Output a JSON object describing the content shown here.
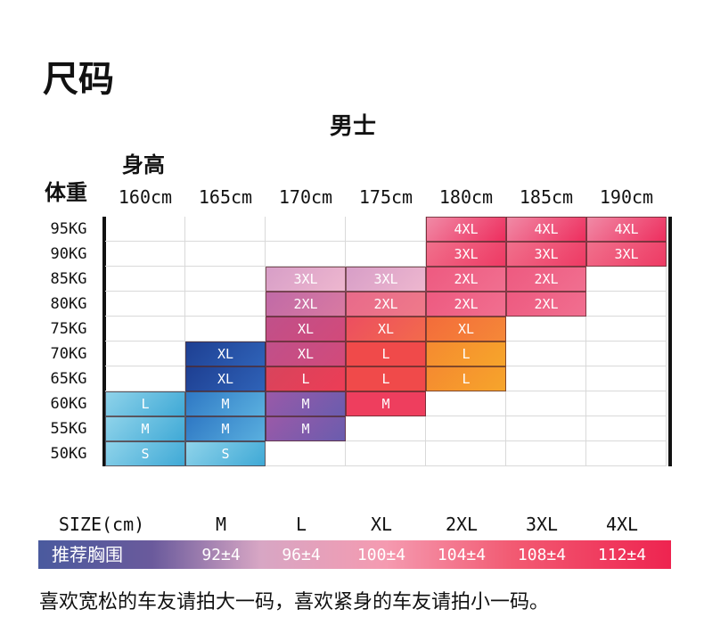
{
  "title": "尺码",
  "subtitle": "男士",
  "height_axis_label": "身高",
  "weight_axis_label": "体重",
  "heights": [
    "160cm",
    "165cm",
    "170cm",
    "175cm",
    "180cm",
    "185cm",
    "190cm"
  ],
  "weights": [
    "95KG",
    "90KG",
    "85KG",
    "80KG",
    "75KG",
    "70KG",
    "65KG",
    "60KG",
    "55KG",
    "50KG"
  ],
  "grid": [
    [
      null,
      null,
      null,
      null,
      "4XL",
      "4XL",
      "4XL"
    ],
    [
      null,
      null,
      null,
      null,
      "3XL",
      "3XL",
      "3XL"
    ],
    [
      null,
      null,
      "3XL",
      "3XL",
      "2XL",
      "2XL",
      null
    ],
    [
      null,
      null,
      "2XL",
      "2XL",
      "2XL",
      "2XL",
      null
    ],
    [
      null,
      null,
      "XL",
      "XL",
      "XL",
      null,
      null
    ],
    [
      null,
      "XL",
      "XL",
      "L",
      "L",
      null,
      null
    ],
    [
      null,
      "XL",
      "L",
      "L",
      "L",
      null,
      null
    ],
    [
      "L",
      "M",
      "M",
      "M",
      null,
      null,
      null
    ],
    [
      "M",
      "M",
      "M",
      null,
      null,
      null,
      null
    ],
    [
      "S",
      "S",
      null,
      null,
      null,
      null,
      null
    ]
  ],
  "size_row_label": "SIZE(cm)",
  "sizes": [
    "M",
    "L",
    "XL",
    "2XL",
    "3XL",
    "4XL"
  ],
  "chest_label": "推荐胸围",
  "chest_values": [
    "92±4",
    "96±4",
    "100±4",
    "104±4",
    "108±4",
    "112±4"
  ],
  "footer": "喜欢宽松的车友请拍大一码，喜欢紧身的车友请拍小一码。",
  "colors": {
    "S": "#56b4d6",
    "M": "#7a8fc8",
    "L": "#f2605a",
    "XL": "#e9a65a",
    "2XL": "#e56a92",
    "3XL": "#e07ab0",
    "4XL": "#ec4a6e",
    "blue_block": "#2a58a8"
  }
}
